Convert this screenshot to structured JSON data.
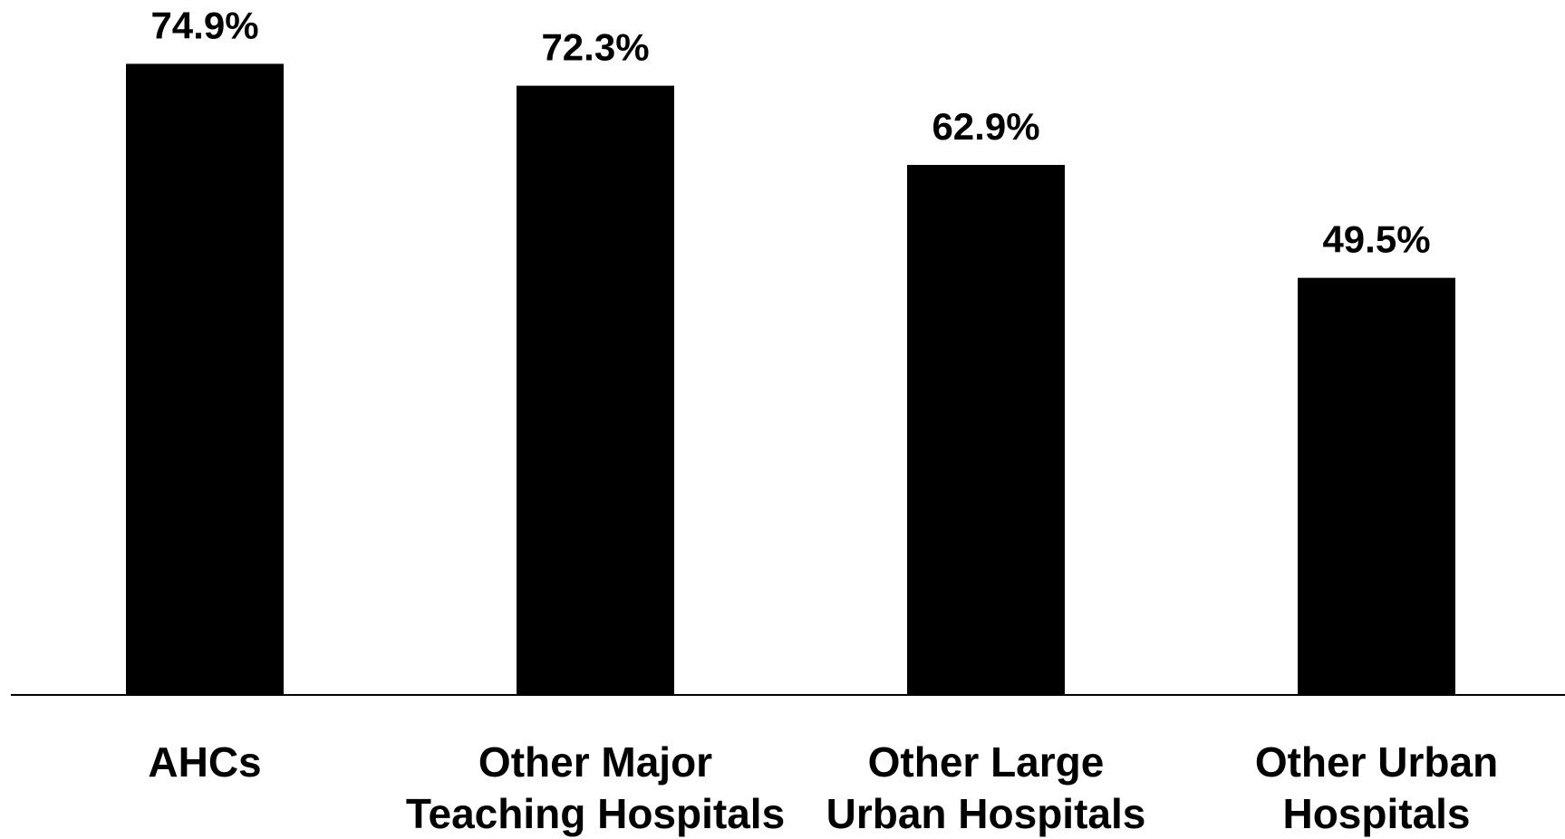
{
  "chart_data": {
    "type": "bar",
    "categories": [
      [
        "AHCs"
      ],
      [
        "Other Major",
        "Teaching Hospitals"
      ],
      [
        "Other Large",
        "Urban Hospitals"
      ],
      [
        "Other Urban",
        "Hospitals"
      ]
    ],
    "values": [
      74.9,
      72.3,
      62.9,
      49.5
    ],
    "value_labels": [
      "74.9%",
      "72.3%",
      "62.9%",
      "49.5%"
    ],
    "title": "",
    "xlabel": "",
    "ylabel": "",
    "ylim": [
      0,
      80
    ],
    "grid": false,
    "legend": "none",
    "bar_color": "#000000",
    "axis_color": "#000000"
  }
}
